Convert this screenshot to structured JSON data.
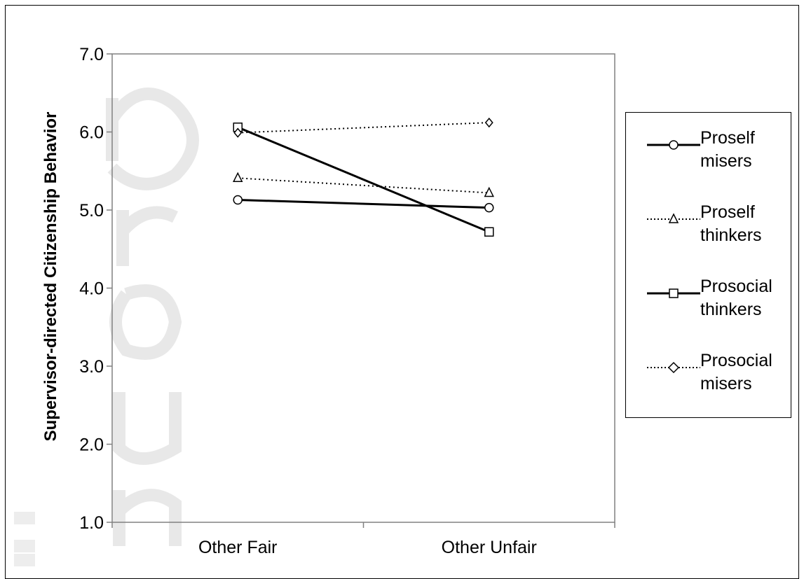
{
  "chart_data": {
    "type": "line",
    "categories": [
      "Other Fair",
      "Other Unfair"
    ],
    "ylabel": "Supervisor-directed Citizenship Behavior",
    "xlabel": "",
    "title": "",
    "ylim": [
      1.0,
      7.0
    ],
    "yticks": [
      "1.0",
      "2.0",
      "3.0",
      "4.0",
      "5.0",
      "6.0",
      "7.0"
    ],
    "grid": false,
    "legend_position": "right",
    "series": [
      {
        "name": "Proself misers",
        "values": [
          5.13,
          5.03
        ],
        "line": "solid",
        "marker": "circle"
      },
      {
        "name": "Proself thinkers",
        "values": [
          5.41,
          5.22
        ],
        "line": "dotted",
        "marker": "triangle"
      },
      {
        "name": "Prosocial thinkers",
        "values": [
          6.06,
          4.72
        ],
        "line": "solid",
        "marker": "square"
      },
      {
        "name": "Prosocial misers",
        "values": [
          5.99,
          6.12
        ],
        "line": "dotted",
        "marker": "diamond"
      }
    ]
  },
  "colors": {
    "line": "#000000",
    "plot_border": "#808080",
    "watermark": "#e6e6e6"
  }
}
